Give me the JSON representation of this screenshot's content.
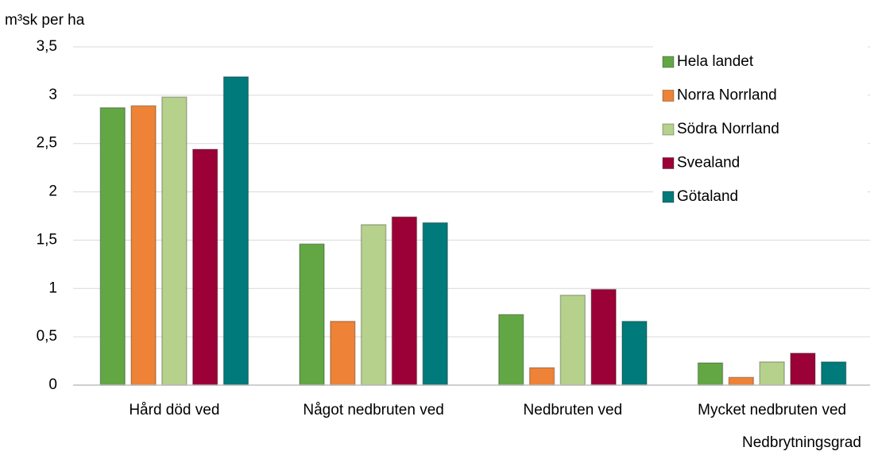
{
  "chart_data": {
    "type": "bar",
    "y_axis_label": "m³sk per ha",
    "x_axis_label": "Nedbrytningsgrad",
    "categories": [
      "Hård död ved",
      "Något nedbruten ved",
      "Nedbruten ved",
      "Mycket nedbruten ved"
    ],
    "series": [
      {
        "name": "Hela landet",
        "color": "#62a744",
        "values": [
          2.87,
          1.46,
          0.73,
          0.23
        ]
      },
      {
        "name": "Norra Norrland",
        "color": "#ee8236",
        "values": [
          2.89,
          0.66,
          0.18,
          0.08
        ]
      },
      {
        "name": "Södra Norrland",
        "color": "#b5d18b",
        "values": [
          2.98,
          1.66,
          0.93,
          0.24
        ]
      },
      {
        "name": "Svealand",
        "color": "#9b0036",
        "values": [
          2.44,
          1.74,
          0.99,
          0.33
        ]
      },
      {
        "name": "Götaland",
        "color": "#007a7a",
        "values": [
          3.19,
          1.68,
          0.66,
          0.24
        ]
      }
    ],
    "ylim": [
      0,
      3.5
    ],
    "yticks": [
      0,
      {
        "value": 0.5,
        "label": "0,5"
      },
      1,
      {
        "value": 1.5,
        "label": "1,5"
      },
      2,
      {
        "value": 2.5,
        "label": "2,5"
      },
      3,
      {
        "value": 3.5,
        "label": "3,5"
      }
    ],
    "grid": true,
    "legend": "upper right"
  }
}
